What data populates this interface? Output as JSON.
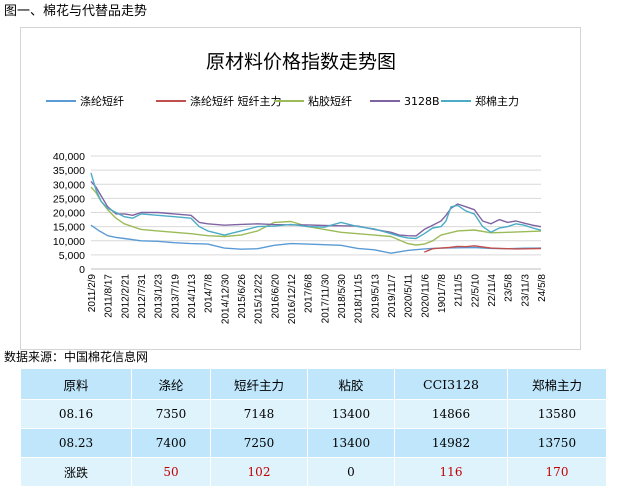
{
  "figure_title": "图一、棉花与代替品走势",
  "source_note": "数据来源：中国棉花信息网",
  "colors": {
    "polyester": "#5b9bd5",
    "polyester_main": "#c0504d",
    "viscose": "#9bbb59",
    "cci3128b": "#8064a2",
    "zce_cotton": "#4bacc6"
  },
  "chart_data": {
    "type": "line",
    "title": "原材料价格指数走势图",
    "legend_position": "top",
    "grid": true,
    "ylim": [
      0,
      40000
    ],
    "y_ticks": [
      "40,000",
      "35,000",
      "30,000",
      "25,000",
      "20,000",
      "15,000",
      "10,000",
      "5,000",
      "0"
    ],
    "x_ticks": [
      "2011/2/9",
      "2011/8/17",
      "2012/2/21",
      "2012/7/31",
      "2013/1/23",
      "2013/7/19",
      "2014/1/13",
      "2014/7/8",
      "2014/12/30",
      "2015/6/26",
      "2015/12/22",
      "2016/6/20",
      "2016/12/12",
      "2017/6/8",
      "2017/11/30",
      "2018/5/30",
      "2018/11/15",
      "2019/5/13",
      "2019/11/7",
      "2020/5/11",
      "2020/11/6",
      "1901/7/8",
      "21/11/5",
      "22/5/10",
      "22/11/4",
      "23/5/8",
      "23/11/3",
      "24/5/8"
    ],
    "x_domain": [
      0,
      27
    ],
    "series": [
      {
        "name": "涤纶短纤",
        "color": "#5b9bd5",
        "x": [
          0,
          0.5,
          1,
          1.5,
          2,
          3,
          4,
          5,
          6,
          7,
          8,
          9,
          10,
          11,
          12,
          13,
          14,
          15,
          16,
          17,
          18,
          19,
          20,
          20.5,
          21,
          22,
          23,
          24,
          25,
          26,
          27
        ],
        "values": [
          15500,
          13500,
          11800,
          11200,
          10800,
          10000,
          9800,
          9300,
          9000,
          8800,
          7400,
          7000,
          7200,
          8400,
          9000,
          8800,
          8600,
          8400,
          7300,
          6800,
          5600,
          6600,
          7100,
          7300,
          7400,
          7500,
          7600,
          7300,
          7200,
          7350,
          7400
        ]
      },
      {
        "name": "涤纶短纤 短纤主力",
        "color": "#c0504d",
        "x": [
          20,
          20.5,
          21,
          21.5,
          22,
          22.5,
          23,
          23.5,
          24,
          24.5,
          25,
          25.5,
          26,
          26.5,
          27
        ],
        "values": [
          6000,
          7200,
          7400,
          7600,
          8000,
          7900,
          8200,
          7800,
          7400,
          7300,
          7200,
          7100,
          7150,
          7200,
          7250
        ]
      },
      {
        "name": "粘胶短纤",
        "color": "#9bbb59",
        "x": [
          0,
          0.3,
          0.6,
          1,
          1.5,
          2,
          3,
          4,
          5,
          6,
          7,
          8,
          9,
          10,
          11,
          12,
          13,
          14,
          15,
          16,
          17,
          18,
          19,
          19.5,
          20,
          20.5,
          21,
          22,
          23,
          24,
          25,
          26,
          27
        ],
        "values": [
          29000,
          27000,
          24000,
          21000,
          18000,
          16000,
          14000,
          13500,
          13000,
          12500,
          11800,
          11500,
          12000,
          13500,
          16500,
          16800,
          15000,
          14000,
          13000,
          12500,
          12000,
          11500,
          9000,
          8500,
          8800,
          10000,
          12000,
          13500,
          13800,
          12800,
          13000,
          13200,
          13400
        ]
      },
      {
        "name": "3128B",
        "color": "#8064a2",
        "x": [
          0,
          0.3,
          0.6,
          1,
          1.5,
          2,
          2.5,
          3,
          4,
          5,
          6,
          6.5,
          7,
          8,
          9,
          10,
          11,
          12,
          13,
          14,
          15,
          16,
          17,
          18,
          18.5,
          19,
          19.5,
          20,
          20.5,
          21,
          21.3,
          21.6,
          22,
          22.5,
          23,
          23.5,
          24,
          24.5,
          25,
          25.5,
          26,
          26.5,
          27
        ],
        "values": [
          31000,
          29000,
          26000,
          22000,
          19500,
          19500,
          19000,
          20000,
          20000,
          19500,
          19000,
          16500,
          16000,
          15500,
          15800,
          16000,
          15700,
          15600,
          15600,
          15400,
          15300,
          15200,
          14000,
          13000,
          12000,
          11800,
          11700,
          14000,
          15500,
          17000,
          19000,
          21500,
          23000,
          22000,
          21000,
          17000,
          16000,
          17500,
          16500,
          17000,
          16200,
          15500,
          14982
        ]
      },
      {
        "name": "郑棉主力",
        "color": "#4bacc6",
        "x": [
          0,
          0.3,
          0.6,
          1,
          1.5,
          2,
          2.5,
          3,
          4,
          5,
          6,
          6.5,
          7,
          8,
          9,
          10,
          11,
          12,
          13,
          14,
          15,
          16,
          17,
          18,
          18.5,
          19,
          19.5,
          20,
          20.5,
          21,
          21.3,
          21.6,
          22,
          22.5,
          23,
          23.5,
          24,
          24.5,
          25,
          25.5,
          26,
          26.5,
          27
        ],
        "values": [
          34000,
          28000,
          24000,
          21500,
          20000,
          18500,
          18000,
          19500,
          19000,
          18500,
          18000,
          15000,
          13500,
          12000,
          13500,
          15000,
          15200,
          15800,
          15000,
          14800,
          16500,
          15000,
          14200,
          12500,
          11600,
          11000,
          10800,
          12500,
          14500,
          15000,
          17000,
          22000,
          22500,
          20500,
          19500,
          15000,
          13000,
          14500,
          15000,
          16000,
          15500,
          14500,
          13750
        ]
      }
    ]
  },
  "table": {
    "headers": [
      "原料",
      "涤纶",
      "短纤主力",
      "粘胶",
      "CCI3128",
      "郑棉主力"
    ],
    "rows": [
      [
        "08.16",
        "7350",
        "7148",
        "13400",
        "14866",
        "13580"
      ],
      [
        "08.23",
        "7400",
        "7250",
        "13400",
        "14982",
        "13750"
      ],
      [
        "涨跌",
        "50",
        "102",
        "0",
        "116",
        "170"
      ]
    ]
  }
}
